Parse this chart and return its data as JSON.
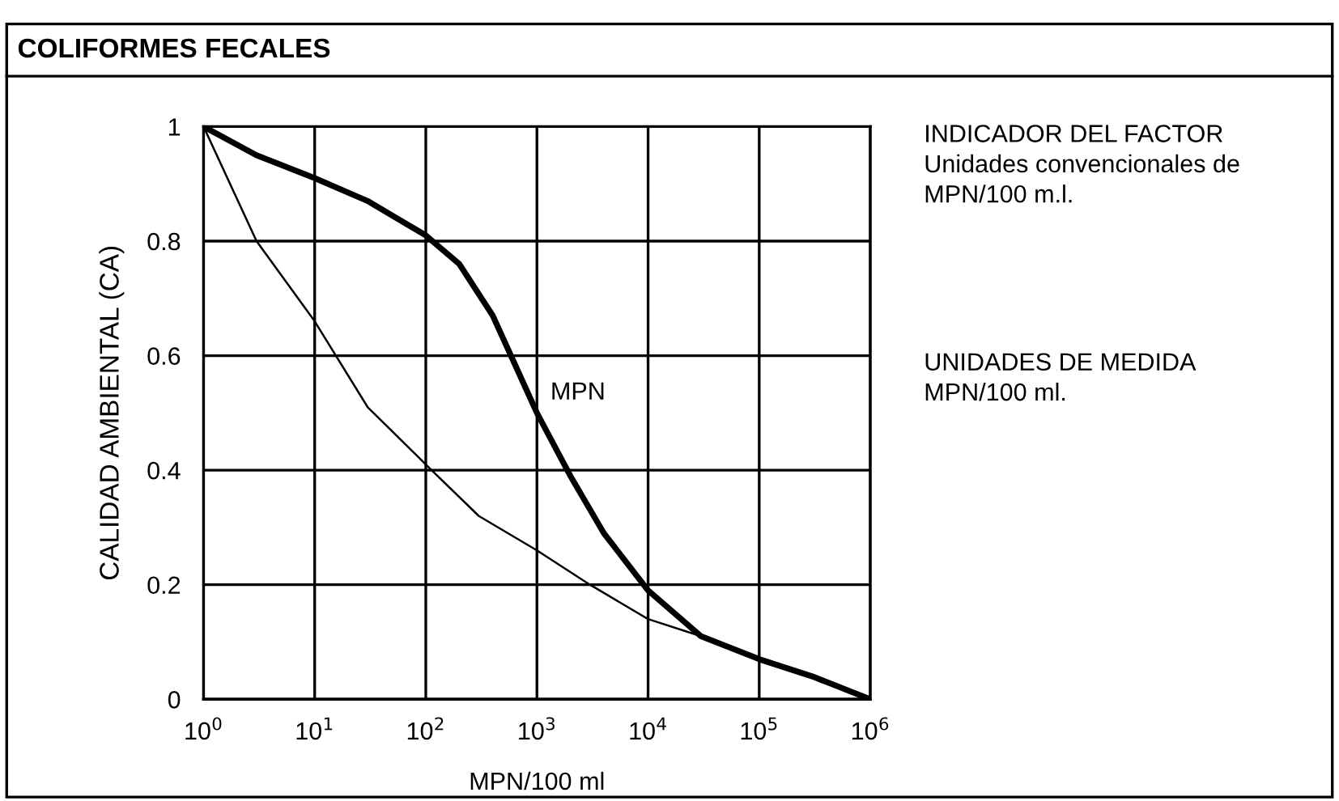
{
  "chart_data": {
    "type": "line",
    "title": "COLIFORMES FECALES",
    "xlabel": "MPN/100 ml",
    "ylabel": "CALIDAD AMBIENTAL (CA)",
    "annotations": [
      "INDICADOR DEL FACTOR\nUnidades convencionales de\nMPN/100 m.l.",
      "UNIDADES DE MEDIDA\nMPN/100 ml."
    ],
    "log": "x",
    "grid": true,
    "legend": false,
    "marker": "none",
    "line_style": "solid",
    "xlim": [
      1,
      1000000
    ],
    "ylim": [
      0,
      1
    ],
    "xticks": [
      {
        "value": 1,
        "label": "10$^{0}$"
      },
      {
        "value": 10,
        "label": "10$^{1}$"
      },
      {
        "value": 100,
        "label": "10$^{2}$"
      },
      {
        "value": 1000,
        "label": "10$^{3}$"
      },
      {
        "value": 10000,
        "label": "10$^{4}$"
      },
      {
        "value": 100000,
        "label": "10$^{5}$"
      },
      {
        "value": 1000000,
        "label": "10$^{6}$"
      }
    ],
    "yticks": [
      0,
      0.2,
      0.4,
      0.6,
      0.8,
      1
    ],
    "series": [
      {
        "name": "MPN",
        "color": "#000000",
        "x": [
          1,
          3,
          10,
          30,
          100,
          200,
          400,
          1000,
          2000,
          4000,
          10000,
          30000,
          100000,
          300000,
          1000000
        ],
        "values": [
          1,
          0.95,
          0.91,
          0.87,
          0.81,
          0.76,
          0.67,
          0.5,
          0.39,
          0.29,
          0.19,
          0.11,
          0.07,
          0.04,
          0
        ]
      },
      {
        "color": "#000000",
        "x": [
          1,
          3,
          10,
          30,
          100,
          300,
          1000,
          3000,
          10000,
          30000
        ],
        "values": [
          1,
          0.8,
          0.66,
          0.51,
          0.41,
          0.32,
          0.26,
          0.2,
          0.14,
          0.11
        ]
      }
    ]
  }
}
